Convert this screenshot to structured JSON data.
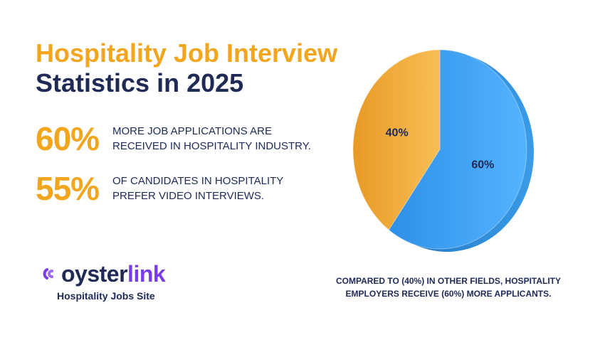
{
  "title": {
    "line1": "Hospitality Job Interview",
    "line2_word": "Statistics",
    "line2_year": "in 2025"
  },
  "stats": [
    {
      "value": "60%",
      "line1": "More job applications are",
      "line2": "received in hospitality industry."
    },
    {
      "value": "55%",
      "line1": "of candidates in hospitality",
      "line2": "prefer video interviews."
    }
  ],
  "brand": {
    "name_part1": "oyster",
    "name_part2": "link",
    "tagline": "Hospitality Jobs Site",
    "colors": {
      "dark": "#1F2A57",
      "purple": "#7A3BE8",
      "accent": "#F2A51E"
    },
    "icon": "oysterlink-logo-icon"
  },
  "caption": {
    "line1": "Compared to (40%) in other fields, hospitality",
    "line2": "employers receive (60%) more applicants."
  },
  "chart_data": {
    "type": "pie",
    "slices": [
      {
        "label": "60%",
        "value": 60,
        "color": "#3FA4F6"
      },
      {
        "label": "40%",
        "value": 40,
        "color": "#F6B23E"
      }
    ]
  }
}
